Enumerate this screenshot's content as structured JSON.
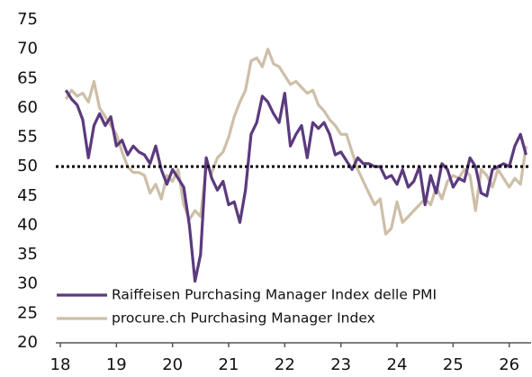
{
  "chart_data": {
    "type": "line",
    "x": [
      18.1,
      18.2,
      18.3,
      18.4,
      18.5,
      18.6,
      18.7,
      18.8,
      18.9,
      19.0,
      19.1,
      19.2,
      19.3,
      19.4,
      19.5,
      19.6,
      19.7,
      19.8,
      19.9,
      20.0,
      20.1,
      20.2,
      20.3,
      20.4,
      20.5,
      20.6,
      20.7,
      20.8,
      20.9,
      21.0,
      21.1,
      21.2,
      21.3,
      21.4,
      21.5,
      21.6,
      21.7,
      21.8,
      21.9,
      22.0,
      22.1,
      22.2,
      22.3,
      22.4,
      22.5,
      22.6,
      22.7,
      22.8,
      22.9,
      23.0,
      23.1,
      23.2,
      23.3,
      23.4,
      23.5,
      23.6,
      23.7,
      23.8,
      23.9,
      24.0,
      24.1,
      24.2,
      24.3,
      24.4,
      24.5,
      24.6,
      24.7,
      24.8,
      24.9,
      25.0,
      25.1,
      25.2,
      25.3,
      25.4,
      25.5,
      25.6,
      25.7,
      25.8,
      25.9,
      26.0,
      26.1,
      26.2,
      26.3
    ],
    "series": [
      {
        "name": "Raiffeisen Purchasing Manager Index delle PMI",
        "color": "#5b3a7e",
        "values": [
          63,
          61.5,
          60.5,
          58,
          51.5,
          57,
          59,
          57,
          58.5,
          53.5,
          54.5,
          52,
          53.5,
          52.5,
          52,
          50.5,
          53.5,
          49.5,
          47,
          49.5,
          48,
          46.5,
          40,
          30.5,
          35,
          51.5,
          48,
          46,
          47.5,
          43.5,
          44,
          40.5,
          46,
          55.5,
          57.5,
          62,
          61,
          59,
          57.5,
          62.5,
          53.5,
          55.5,
          57,
          51.5,
          57.5,
          56.5,
          57.5,
          55.5,
          52,
          52.5,
          51,
          49.5,
          51.5,
          50.5,
          50.5,
          50,
          50,
          48,
          48.5,
          47,
          49.5,
          46.5,
          47.5,
          50,
          43.5,
          48.5,
          45.5,
          50.5,
          49.5,
          46.5,
          48,
          47.5,
          51.5,
          50,
          45.5,
          45,
          49.5,
          50,
          50.5,
          50,
          53.5,
          55.5,
          52
        ]
      },
      {
        "name": "procure.ch Purchasing Manager Index",
        "color": "#cdbfa8",
        "values": [
          61.5,
          63,
          62,
          62.5,
          61,
          64.5,
          60,
          58.5,
          57,
          55.5,
          52.5,
          50,
          49,
          49,
          48.5,
          45.5,
          47,
          44.5,
          48.5,
          47.5,
          49.5,
          43.5,
          41,
          42.5,
          41.5,
          50,
          49,
          51.5,
          52.5,
          55,
          58.5,
          61,
          63,
          68,
          68.5,
          67,
          70,
          67.5,
          67,
          65.5,
          64,
          64.5,
          63.5,
          62.5,
          63,
          60.5,
          59.5,
          58,
          57,
          55.5,
          55.5,
          52.5,
          49.5,
          47.5,
          45.5,
          43.5,
          44.5,
          38.5,
          39.5,
          44,
          40.5,
          41.5,
          42.5,
          43.5,
          44.5,
          43.5,
          46.5,
          44.5,
          47.5,
          48.5,
          48,
          49.5,
          48.5,
          42.5,
          49.5,
          48.5,
          46.5,
          49.5,
          48,
          46.5,
          48,
          47,
          53.5
        ]
      }
    ],
    "hline": 50,
    "xlim": [
      17.92,
      26.39
    ],
    "xticks": [
      18,
      19,
      20,
      21,
      22,
      23,
      24,
      25,
      26
    ],
    "ylim": [
      20,
      75
    ],
    "yticks": [
      20,
      25,
      30,
      35,
      40,
      45,
      50,
      55,
      60,
      65,
      70,
      75
    ],
    "legend": "lower left"
  }
}
